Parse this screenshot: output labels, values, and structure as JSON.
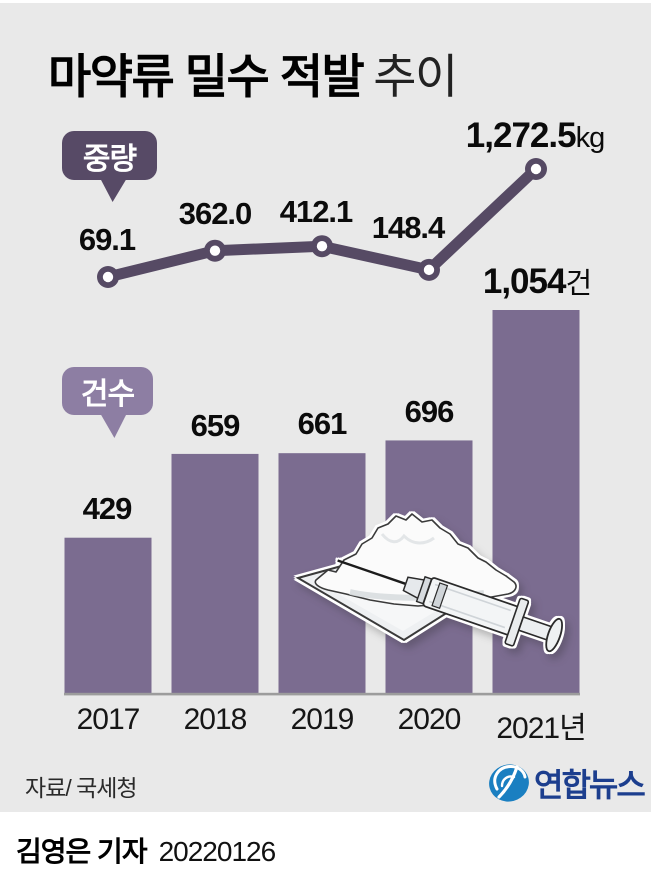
{
  "title": {
    "main": "마약류 밀수 적발",
    "sub": "추이"
  },
  "badges": {
    "weight": "중량",
    "count": "건수"
  },
  "chart_data": {
    "type": "bar+line",
    "categories": [
      "2017",
      "2018",
      "2019",
      "2020",
      "2021년"
    ],
    "series": [
      {
        "name": "중량",
        "kind": "line",
        "unit": "kg",
        "values": [
          69.1,
          362.0,
          412.1,
          148.4,
          1272.5
        ],
        "labels": [
          "69.1",
          "362.0",
          "412.1",
          "148.4"
        ],
        "last_label": {
          "value": "1,272.5",
          "unit": "kg"
        }
      },
      {
        "name": "건수",
        "kind": "bar",
        "unit": "건",
        "values": [
          429,
          659,
          661,
          696,
          1054
        ],
        "labels": [
          "429",
          "659",
          "661",
          "696"
        ],
        "last_label": {
          "value": "1,054",
          "unit": "건"
        }
      }
    ],
    "legend_position": "inline-badges",
    "grid": false
  },
  "colors": {
    "background": "#e9e9e9",
    "bar": "#7b6c90",
    "line": "#564a64",
    "badge_weight": "#574a66",
    "badge_count": "#8d7ea3",
    "axis": "#9c9c9c",
    "logo_blue": "#1a7fc1",
    "logo_navy": "#1c3e8e"
  },
  "illustration": "syringe-and-powder",
  "source": "자료/ 국세청",
  "logo": {
    "text": "연합뉴스"
  },
  "byline": {
    "reporter": "김영은 기자",
    "date": "20220126"
  }
}
